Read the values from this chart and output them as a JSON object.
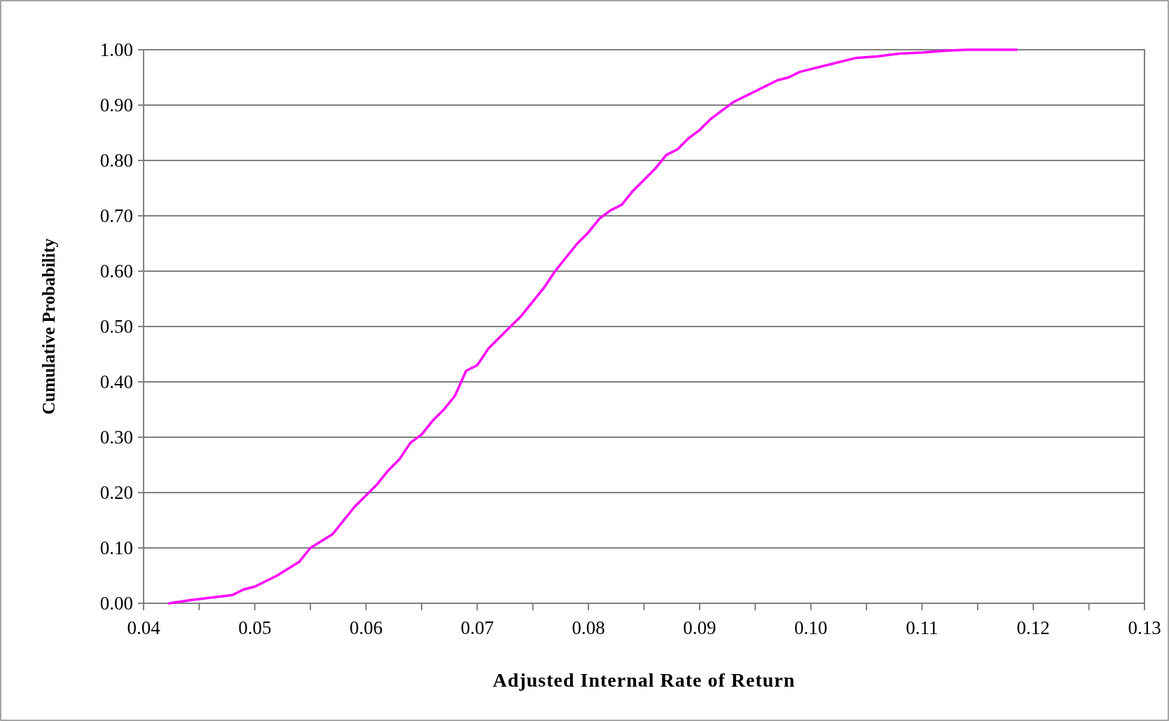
{
  "chart_data": {
    "type": "line",
    "xlabel": "Adjusted Internal Rate of Return",
    "ylabel": "Cumulative Probability",
    "xlim": [
      0.04,
      0.13
    ],
    "xticks": [
      {
        "value": 0.04,
        "label": "0.04"
      },
      {
        "value": 0.05,
        "label": "0.05"
      },
      {
        "value": 0.06,
        "label": "0.06"
      },
      {
        "value": 0.07,
        "label": "0.07"
      },
      {
        "value": 0.08,
        "label": "0.08"
      },
      {
        "value": 0.09,
        "label": "0.09"
      },
      {
        "value": 0.1,
        "label": "0.10"
      },
      {
        "value": 0.11,
        "label": "0.11"
      },
      {
        "value": 0.12,
        "label": "0.12"
      },
      {
        "value": 0.13,
        "label": "0.13"
      }
    ],
    "ylim": [
      0,
      1
    ],
    "yticks": [
      {
        "value": 0,
        "label": "0.00"
      },
      {
        "value": 0.1,
        "label": "0.10"
      },
      {
        "value": 0.2,
        "label": "0.20"
      },
      {
        "value": 0.3,
        "label": "0.30"
      },
      {
        "value": 0.4,
        "label": "0.40"
      },
      {
        "value": 0.5,
        "label": "0.50"
      },
      {
        "value": 0.6,
        "label": "0.60"
      },
      {
        "value": 0.7,
        "label": "0.70"
      },
      {
        "value": 0.8,
        "label": "0.80"
      },
      {
        "value": 0.9,
        "label": "0.90"
      },
      {
        "value": 1,
        "label": "1.00"
      }
    ],
    "grid": "y",
    "marker": "none",
    "line_style": "solid",
    "series": [
      {
        "color": "#ff00ff",
        "x": [
          0.0423,
          0.044,
          0.046,
          0.048,
          0.049,
          0.05,
          0.052,
          0.054,
          0.055,
          0.057,
          0.058,
          0.059,
          0.06,
          0.061,
          0.062,
          0.063,
          0.064,
          0.065,
          0.066,
          0.067,
          0.068,
          0.069,
          0.07,
          0.071,
          0.072,
          0.073,
          0.074,
          0.075,
          0.076,
          0.077,
          0.078,
          0.079,
          0.08,
          0.081,
          0.082,
          0.083,
          0.084,
          0.085,
          0.086,
          0.087,
          0.088,
          0.089,
          0.09,
          0.091,
          0.092,
          0.093,
          0.094,
          0.095,
          0.096,
          0.097,
          0.098,
          0.099,
          0.1,
          0.102,
          0.104,
          0.106,
          0.108,
          0.11,
          0.112,
          0.114,
          0.1185
        ],
        "values": [
          0,
          0.005,
          0.01,
          0.015,
          0.025,
          0.03,
          0.05,
          0.075,
          0.1,
          0.125,
          0.15,
          0.175,
          0.195,
          0.215,
          0.24,
          0.26,
          0.29,
          0.305,
          0.33,
          0.35,
          0.375,
          0.42,
          0.43,
          0.46,
          0.48,
          0.5,
          0.52,
          0.545,
          0.57,
          0.6,
          0.625,
          0.65,
          0.67,
          0.695,
          0.71,
          0.72,
          0.745,
          0.765,
          0.785,
          0.81,
          0.82,
          0.84,
          0.855,
          0.875,
          0.89,
          0.905,
          0.915,
          0.925,
          0.935,
          0.945,
          0.95,
          0.96,
          0.965,
          0.975,
          0.985,
          0.988,
          0.993,
          0.995,
          0.998,
          1,
          1
        ]
      }
    ]
  }
}
